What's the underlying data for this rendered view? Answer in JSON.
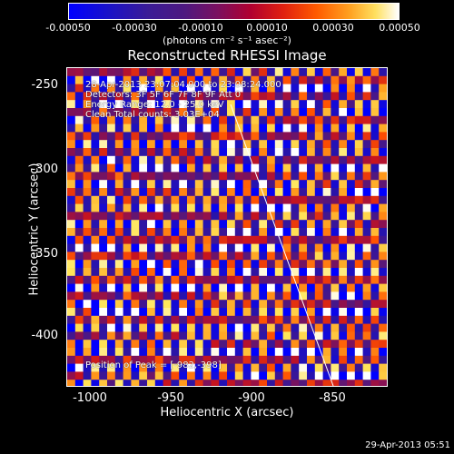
{
  "colorbar": {
    "ticks": [
      "-0.00050",
      "-0.00030",
      "-0.00010",
      "0.00010",
      "0.00030",
      "0.00050"
    ],
    "units": "(photons cm⁻² s⁻¹ asec⁻²)"
  },
  "image": {
    "title": "Reconstructed RHESSI Image",
    "info": [
      "28-Apr-2013 23:07:04.000 to 23:08:24.000",
      "Detectors: 3F 5F 6F 7F 8F 9F Att 0",
      "Energy Range: 12.0 - 25.0 keV",
      "Clean   Total counts: 3.03E+04"
    ],
    "peak_label": "Position of Peak = [-982,-398]"
  },
  "axes": {
    "xlabel": "Heliocentric X (arcsec)",
    "ylabel": "Heliocentric Y (arcsec)",
    "xticks": [
      "-1000",
      "-950",
      "-900",
      "-850"
    ],
    "yticks": [
      "-250",
      "-300",
      "-350",
      "-400"
    ]
  },
  "footer": {
    "timestamp": "29-Apr-2013 05:51"
  }
}
